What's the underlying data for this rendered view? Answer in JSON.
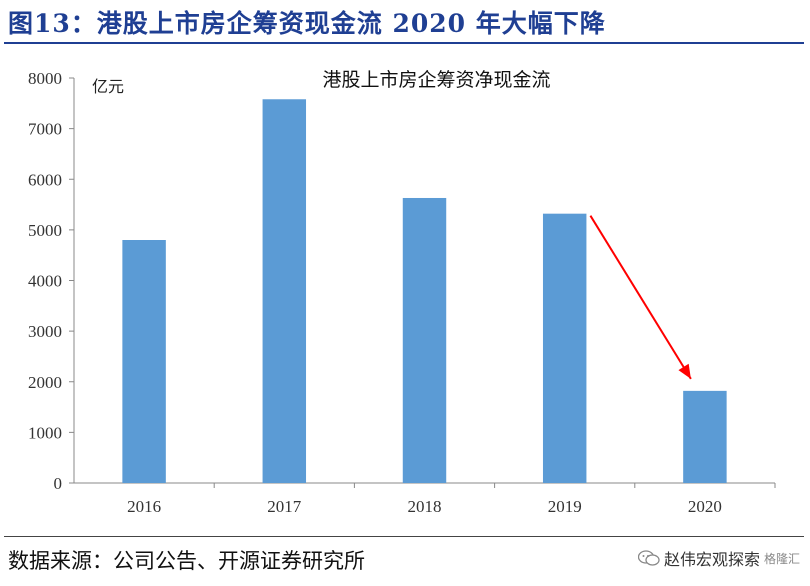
{
  "figure": {
    "title": "图13：港股上市房企筹资现金流 2020 年大幅下降",
    "source": "数据来源：公司公告、开源证券研究所",
    "watermark": {
      "main": "赵伟宏观探索",
      "sub": "格隆汇",
      "icon": "wechat-icon"
    }
  },
  "chart_data": {
    "type": "bar",
    "title": "港股上市房企筹资净现金流",
    "ylabel": "亿元",
    "xlabel": "",
    "categories": [
      "2016",
      "2017",
      "2018",
      "2019",
      "2020"
    ],
    "values": [
      4800,
      7580,
      5630,
      5320,
      1820
    ],
    "ylim": [
      0,
      8000
    ],
    "yticks": [
      0,
      1000,
      2000,
      3000,
      4000,
      5000,
      6000,
      7000,
      8000
    ],
    "grid": false,
    "bar_color": "#5b9bd5",
    "annotation": {
      "type": "arrow",
      "from_category": "2019",
      "to_category": "2020",
      "color": "#ff0000"
    }
  }
}
